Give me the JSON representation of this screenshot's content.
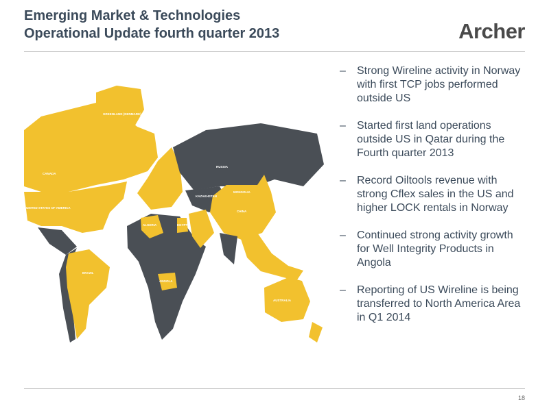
{
  "header": {
    "title_line1": "Emerging Market & Technologies",
    "title_line2": "Operational Update fourth quarter 2013",
    "logo": "Archer"
  },
  "map_labels": [
    "CANADA",
    "GREENLAND (DENMARK)",
    "UNITED STATES OF AMERICA",
    "RUSSIA",
    "KAZAKHSTAN",
    "MONGOLIA",
    "CHINA",
    "ALGERIA",
    "EGYPT",
    "BRAZIL",
    "ANGOLA",
    "AUSTRALIA"
  ],
  "bullets": [
    "Strong Wireline activity in Norway with first TCP jobs performed outside US",
    "Started first land operations outside US in Qatar during the Fourth quarter 2013",
    "Record Oiltools revenue with strong Cflex sales in the US and higher LOCK rentals in Norway",
    "Continued strong activity growth for Well Integrity Products in Angola",
    "Reporting of US Wireline is being transferred to North America Area in Q1 2014"
  ],
  "bullet_marker": "–",
  "footer": {
    "page_number": "18"
  }
}
